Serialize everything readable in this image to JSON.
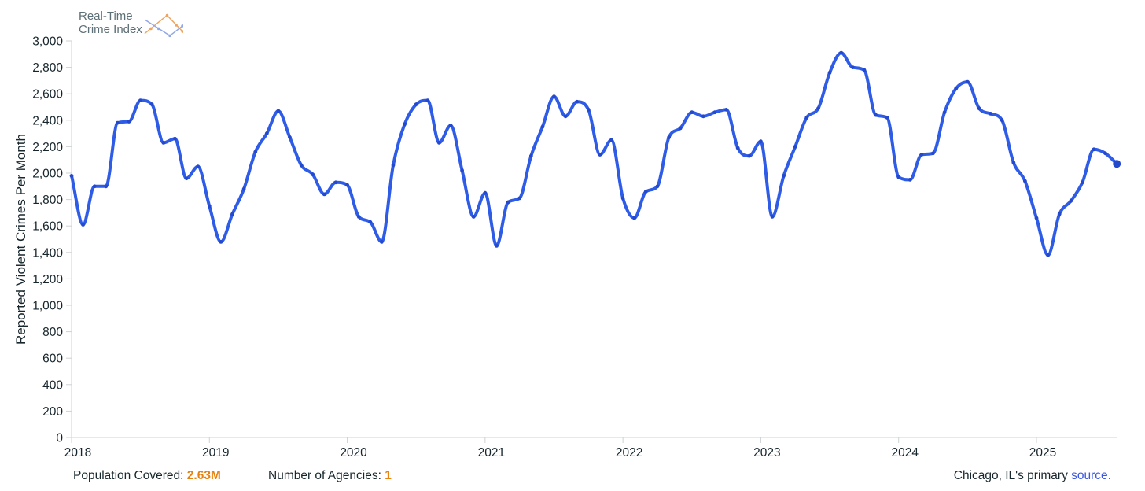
{
  "logo": {
    "line1": "Real-Time",
    "line2": "Crime Index"
  },
  "colors": {
    "line_blue": "#2e5ce6",
    "marker_blue": "#2549cc",
    "accent_orange": "#e8820f",
    "link_blue": "#3a57e2",
    "text_dark": "#17262d",
    "axis_gray": "#ccd3d6",
    "logo_gray": "#5d6f76",
    "logo_icon_orange": "#f0a35c",
    "logo_icon_blue": "#8ea6ea"
  },
  "chart_data": {
    "type": "line",
    "title": "",
    "xlabel": "",
    "ylabel": "Reported Violent Crimes Per Month",
    "ylim": [
      0,
      3000
    ],
    "grid": false,
    "legend": "none",
    "y_ticks": [
      0,
      200,
      400,
      600,
      800,
      1000,
      1200,
      1400,
      1600,
      1800,
      2000,
      2200,
      2400,
      2600,
      2800,
      3000
    ],
    "x_tick_labels": [
      "2018",
      "2019",
      "2020",
      "2021",
      "2022",
      "2023",
      "2024",
      "2025"
    ],
    "months": [
      "2018-01",
      "2018-02",
      "2018-03",
      "2018-04",
      "2018-05",
      "2018-06",
      "2018-07",
      "2018-08",
      "2018-09",
      "2018-10",
      "2018-11",
      "2018-12",
      "2019-01",
      "2019-02",
      "2019-03",
      "2019-04",
      "2019-05",
      "2019-06",
      "2019-07",
      "2019-08",
      "2019-09",
      "2019-10",
      "2019-11",
      "2019-12",
      "2020-01",
      "2020-02",
      "2020-03",
      "2020-04",
      "2020-05",
      "2020-06",
      "2020-07",
      "2020-08",
      "2020-09",
      "2020-10",
      "2020-11",
      "2020-12",
      "2021-01",
      "2021-02",
      "2021-03",
      "2021-04",
      "2021-05",
      "2021-06",
      "2021-07",
      "2021-08",
      "2021-09",
      "2021-10",
      "2021-11",
      "2021-12",
      "2022-01",
      "2022-02",
      "2022-03",
      "2022-04",
      "2022-05",
      "2022-06",
      "2022-07",
      "2022-08",
      "2022-09",
      "2022-10",
      "2022-11",
      "2022-12",
      "2023-01",
      "2023-02",
      "2023-03",
      "2023-04",
      "2023-05",
      "2023-06",
      "2023-07",
      "2023-08",
      "2023-09",
      "2023-10",
      "2023-11",
      "2023-12",
      "2024-01",
      "2024-02",
      "2024-03",
      "2024-04",
      "2024-05",
      "2024-06",
      "2024-07",
      "2024-08",
      "2024-09",
      "2024-10",
      "2024-11",
      "2024-12",
      "2025-01",
      "2025-02",
      "2025-03",
      "2025-04",
      "2025-05",
      "2025-06",
      "2025-07",
      "2025-08"
    ],
    "series": [
      {
        "name": "Reported Violent Crimes Per Month",
        "color": "#2e5ce6",
        "values": [
          1980,
          1610,
          1900,
          1900,
          2380,
          2390,
          2550,
          2520,
          2230,
          2260,
          1960,
          2050,
          1750,
          1480,
          1690,
          1880,
          2160,
          2300,
          2470,
          2270,
          2060,
          1990,
          1840,
          1930,
          1910,
          1670,
          1630,
          1480,
          2060,
          2370,
          2520,
          2550,
          2230,
          2360,
          2020,
          1670,
          1850,
          1450,
          1780,
          1810,
          2130,
          2350,
          2580,
          2430,
          2540,
          2480,
          2140,
          2250,
          1810,
          1660,
          1860,
          1900,
          2270,
          2340,
          2460,
          2430,
          2460,
          2480,
          2190,
          2130,
          2240,
          1670,
          1980,
          2200,
          2420,
          2490,
          2760,
          2910,
          2800,
          2780,
          2440,
          2420,
          1970,
          1950,
          2140,
          2150,
          2460,
          2640,
          2690,
          2490,
          2450,
          2400,
          2080,
          1940,
          1660,
          1380,
          1690,
          1790,
          1930,
          2180,
          2150,
          2070
        ]
      }
    ]
  },
  "footer": {
    "population_label": "Population Covered: ",
    "population_value": "2.63M",
    "agencies_label": "Number of Agencies: ",
    "agencies_value": "1",
    "source_prefix": "Chicago, IL's primary ",
    "source_link": "source."
  }
}
